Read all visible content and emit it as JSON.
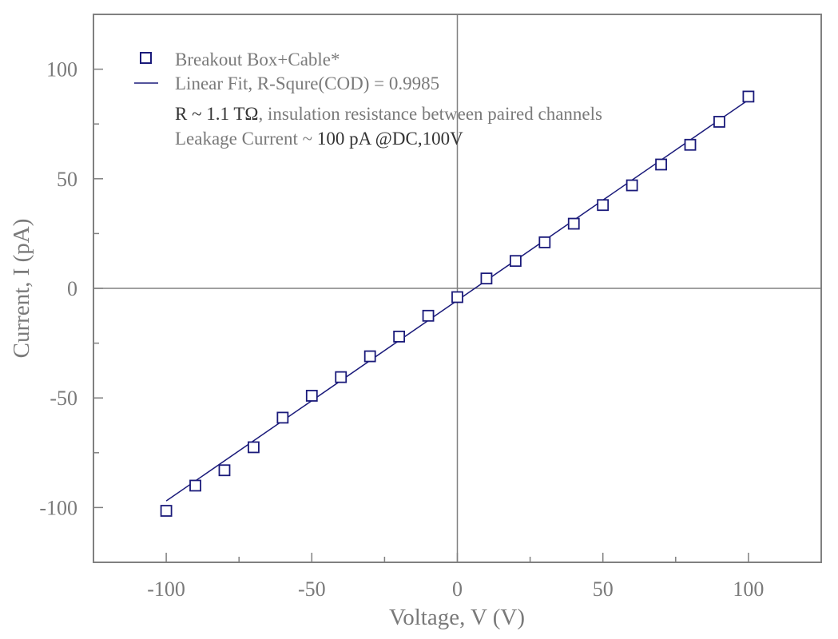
{
  "chart_data": {
    "type": "scatter",
    "xlabel": "Voltage, V (V)",
    "ylabel": "Current, I (pA)",
    "xlim": [
      -125,
      125
    ],
    "ylim": [
      -125,
      125
    ],
    "x_ticks": [
      -100,
      -50,
      0,
      50,
      100
    ],
    "y_ticks": [
      -100,
      -50,
      0,
      50,
      100
    ],
    "x_tick_labels": [
      "-100",
      "-50",
      "0",
      "50",
      "100"
    ],
    "y_tick_labels": [
      "-100",
      "-50",
      "0",
      "50",
      "100"
    ],
    "minor_tick_step": 25,
    "grid": false,
    "zero_lines": true,
    "legend_position": "top-left",
    "series": [
      {
        "name": "Breakout Box+Cable*",
        "marker": "open-square",
        "color": "#1a1a7a",
        "x": [
          -100,
          -90,
          -80,
          -70,
          -60,
          -50,
          -40,
          -30,
          -20,
          -10,
          0,
          10,
          20,
          30,
          40,
          50,
          60,
          70,
          80,
          90,
          100
        ],
        "y": [
          -101.5,
          -90,
          -83,
          -72.5,
          -59,
          -49,
          -40.5,
          -31,
          -22,
          -12.5,
          -4,
          4.5,
          12.5,
          21,
          29.5,
          38,
          47,
          56.5,
          65.5,
          76,
          87.5
        ]
      },
      {
        "name": "Linear Fit, R-Squre(COD) = 0.9985",
        "type": "line",
        "color": "#1a1a7a",
        "x": [
          -100,
          100
        ],
        "y": [
          -97,
          86
        ]
      }
    ],
    "annotations": [
      {
        "text": "R ~ 1.1 TΩ",
        "tone": "dark"
      },
      {
        "text": ", insulation resistance between paired channels",
        "tone": "light"
      },
      {
        "text": "Leakage Current ~ ",
        "tone": "light"
      },
      {
        "text": "100 pA @DC,100V",
        "tone": "dark"
      }
    ]
  }
}
